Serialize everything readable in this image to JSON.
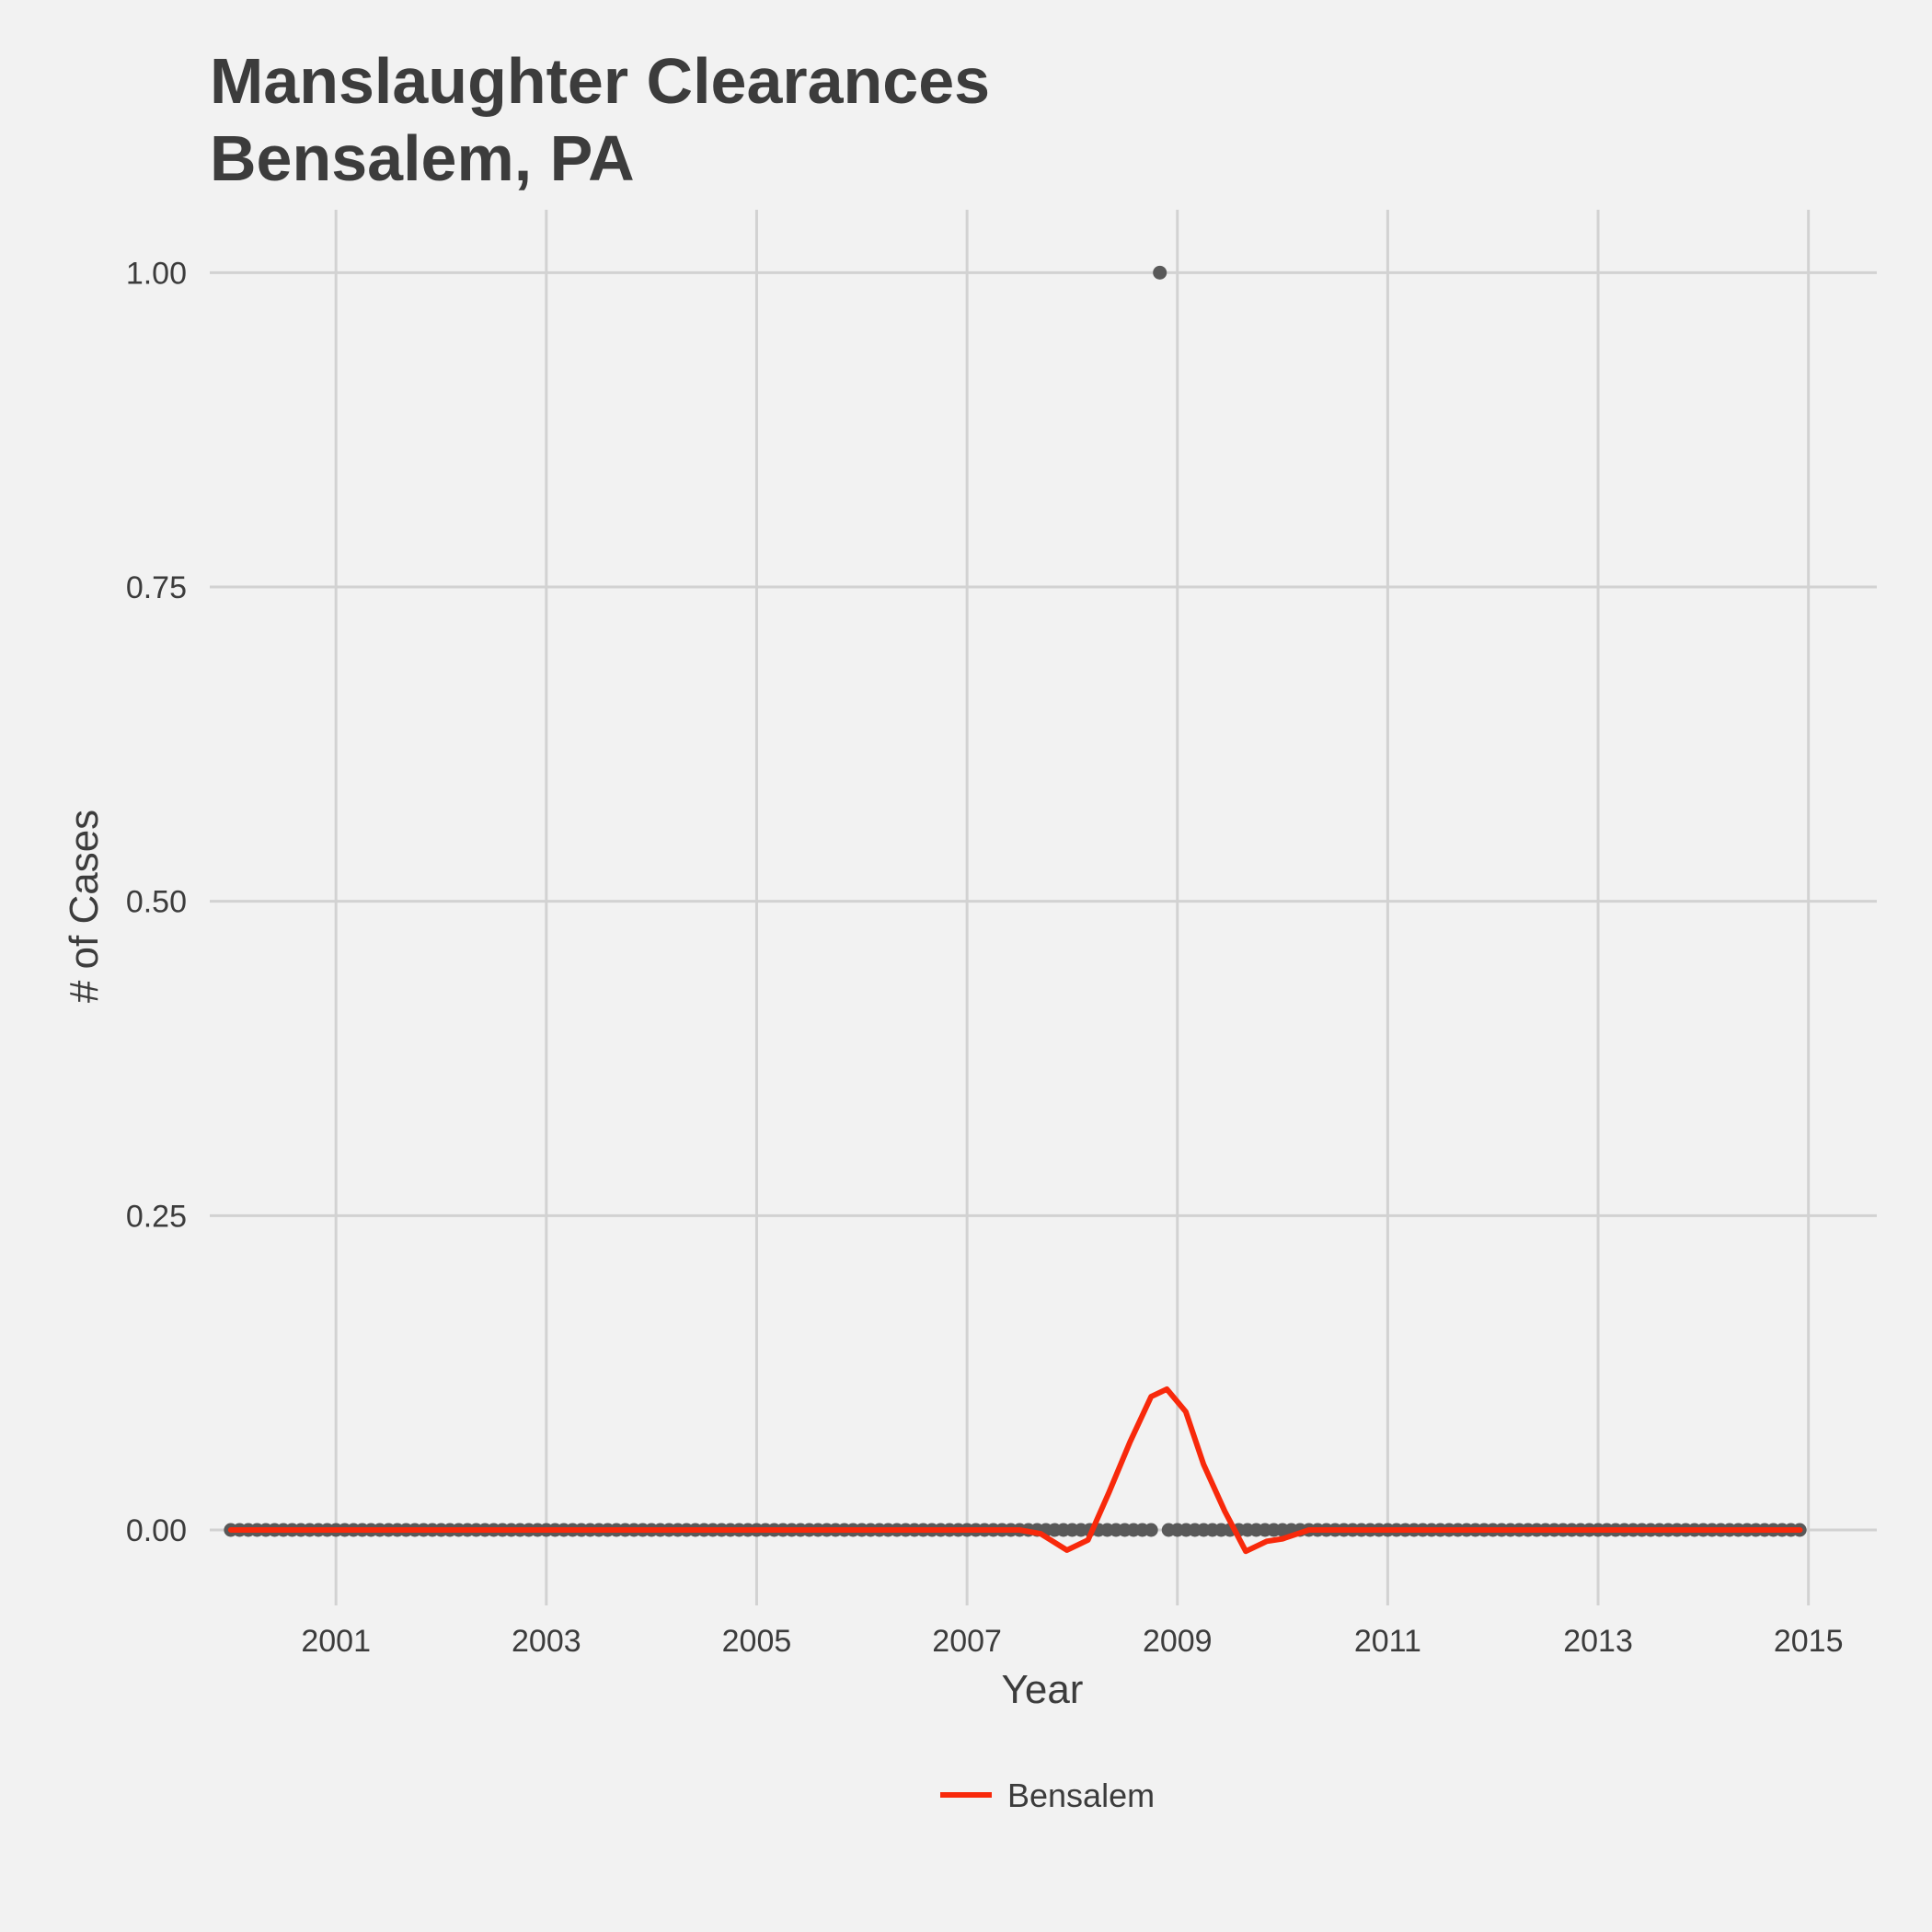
{
  "chart_data": {
    "type": "scatter",
    "title_lines": [
      "Manslaughter Clearances",
      "Bensalem, PA"
    ],
    "xlabel": "Year",
    "ylabel": "# of Cases",
    "x_ticks": [
      "2001",
      "2003",
      "2005",
      "2007",
      "2009",
      "2011",
      "2013",
      "2015"
    ],
    "x_tick_values": [
      2001,
      2003,
      2005,
      2007,
      2009,
      2011,
      2013,
      2015
    ],
    "y_ticks": [
      "0.00",
      "0.25",
      "0.50",
      "0.75",
      "1.00"
    ],
    "y_tick_values": [
      0,
      0.25,
      0.5,
      0.75,
      1
    ],
    "xlim": [
      1999.8,
      2015.65
    ],
    "ylim": [
      -0.06,
      1.05
    ],
    "grid": true,
    "legend_position": "bottom",
    "points": {
      "color": "#595959",
      "x_start": 2000.0,
      "months": 180,
      "y_default": 0,
      "nonzero": [
        {
          "x": 2008.83,
          "y": 1
        }
      ]
    },
    "series": [
      {
        "name": "Bensalem",
        "color": "#f8290b",
        "x": [
          2000.0,
          2001.0,
          2002.0,
          2003.0,
          2004.0,
          2005.0,
          2006.0,
          2007.0,
          2007.5,
          2007.7,
          2007.95,
          2008.15,
          2008.35,
          2008.55,
          2008.75,
          2008.9,
          2009.08,
          2009.25,
          2009.45,
          2009.65,
          2009.85,
          2010.0,
          2010.25,
          2011.0,
          2012.0,
          2013.0,
          2014.0,
          2014.92
        ],
        "y": [
          0,
          0,
          0,
          0,
          0,
          0,
          0,
          0,
          0,
          -0.003,
          -0.016,
          -0.008,
          0.03,
          0.07,
          0.106,
          0.112,
          0.094,
          0.052,
          0.015,
          -0.017,
          -0.009,
          -0.007,
          0,
          0,
          0,
          0,
          0,
          0
        ]
      }
    ]
  }
}
